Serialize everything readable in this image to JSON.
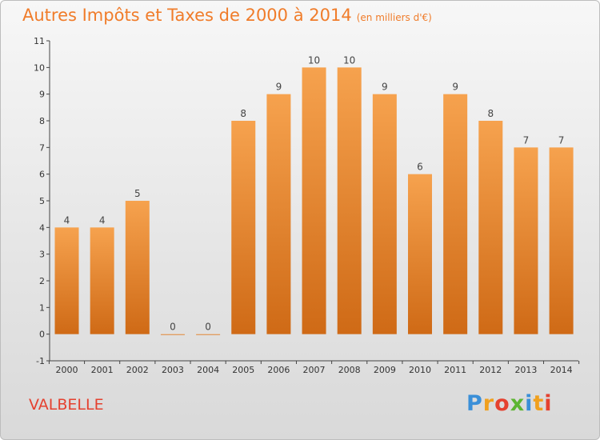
{
  "chart_data": {
    "type": "bar",
    "title": "Autres Impôts et Taxes de 2000 à 2014",
    "subtitle": "(en milliers d'€)",
    "categories": [
      "2000",
      "2001",
      "2002",
      "2003",
      "2004",
      "2005",
      "2006",
      "2007",
      "2008",
      "2009",
      "2010",
      "2011",
      "2012",
      "2013",
      "2014"
    ],
    "values": [
      4,
      4,
      5,
      0,
      0,
      8,
      9,
      10,
      10,
      9,
      6,
      9,
      8,
      7,
      7
    ],
    "value_labels": [
      "4",
      "4",
      "5",
      "0",
      "0",
      "8",
      "9",
      "10",
      "10",
      "9",
      "6",
      "9",
      "8",
      "7",
      "7"
    ],
    "yticks": [
      "-1",
      "0",
      "1",
      "2",
      "3",
      "4",
      "5",
      "6",
      "7",
      "8",
      "9",
      "10",
      "11"
    ],
    "ylim": [
      -1,
      11
    ],
    "grid": false,
    "bar_color": "#f08a2e"
  },
  "footer": {
    "place": "VALBELLE",
    "logo_letters": [
      "P",
      "r",
      "o",
      "x",
      "i",
      "t",
      "i"
    ],
    "logo_colors": [
      "#3a8fd8",
      "#f0a01e",
      "#e5412f",
      "#5cb531",
      "#3a8fd8",
      "#f0a01e",
      "#e5412f"
    ]
  }
}
